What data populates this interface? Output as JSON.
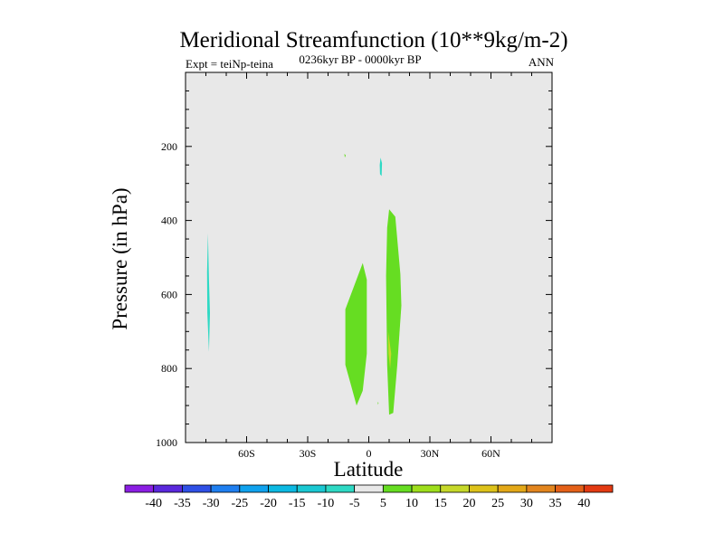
{
  "chart_data": {
    "type": "contour",
    "title": "Meridional Streamfunction (10**9kg/m-2)",
    "subtitle_left": "Expt = teiNp-teina",
    "subtitle_center": "0236kyr BP - 0000kyr BP",
    "subtitle_right": "ANN",
    "xlabel": "Latitude",
    "ylabel": "Pressure (in hPa)",
    "xlim": [
      -90,
      90
    ],
    "ylim": [
      1000,
      0
    ],
    "x_ticks": [
      {
        "value": -60,
        "label": "60S"
      },
      {
        "value": -30,
        "label": "30S"
      },
      {
        "value": 0,
        "label": "0"
      },
      {
        "value": 30,
        "label": "30N"
      },
      {
        "value": 60,
        "label": "60N"
      }
    ],
    "y_ticks": [
      {
        "value": 200,
        "label": "200"
      },
      {
        "value": 400,
        "label": "400"
      },
      {
        "value": 600,
        "label": "600"
      },
      {
        "value": 800,
        "label": "800"
      },
      {
        "value": 1000,
        "label": "1000"
      }
    ],
    "background_color": "#e8e8e8",
    "regions": [
      {
        "name": "neg-sh-high-lat",
        "level": "-10 to -5",
        "color": "#2ed9c4",
        "points": [
          [
            -79,
            435
          ],
          [
            -78.5,
            560
          ],
          [
            -78,
            650
          ],
          [
            -78.5,
            755
          ],
          [
            -79.3,
            650
          ],
          [
            -79.4,
            540
          ]
        ]
      },
      {
        "name": "neg-upper-small",
        "level": "-10 to -5",
        "color": "#2ed9c4",
        "points": [
          [
            5.8,
            230
          ],
          [
            6.5,
            245
          ],
          [
            6.3,
            280
          ],
          [
            5.5,
            275
          ],
          [
            5.4,
            250
          ]
        ]
      },
      {
        "name": "dot-upper",
        "level": "5 to 10",
        "color": "#66dd22",
        "points": [
          [
            -12,
            220
          ],
          [
            -11.3,
            224
          ],
          [
            -11.8,
            230
          ]
        ]
      },
      {
        "name": "pos-eq-lobe",
        "level": "5 to 10",
        "color": "#66dd22",
        "points": [
          [
            -3,
            515
          ],
          [
            -1,
            560
          ],
          [
            -1,
            760
          ],
          [
            -3,
            860
          ],
          [
            -6,
            900
          ],
          [
            -9,
            840
          ],
          [
            -11.5,
            790
          ],
          [
            -11.5,
            640
          ]
        ]
      },
      {
        "name": "pos-nh-lobe",
        "level": "5 to 10",
        "color": "#66dd22",
        "points": [
          [
            10,
            370
          ],
          [
            13,
            390
          ],
          [
            15.5,
            545
          ],
          [
            16,
            630
          ],
          [
            14,
            790
          ],
          [
            12,
            920
          ],
          [
            10,
            925
          ],
          [
            9,
            790
          ],
          [
            8.5,
            550
          ],
          [
            9,
            420
          ]
        ]
      },
      {
        "name": "pos-nh-core",
        "level": "10 to 15",
        "color": "#c6d82a",
        "points": [
          [
            9.5,
            700
          ],
          [
            11,
            760
          ],
          [
            10.5,
            800
          ],
          [
            9.7,
            760
          ]
        ]
      },
      {
        "name": "dot-lower",
        "level": "5 to 10",
        "color": "#66dd22",
        "points": [
          [
            4.4,
            890
          ],
          [
            4.8,
            893
          ],
          [
            4.5,
            898
          ]
        ]
      }
    ],
    "colorbar": {
      "labels": [
        "-40",
        "-35",
        "-30",
        "-25",
        "-20",
        "-15",
        "-10",
        "-5",
        "5",
        "10",
        "15",
        "20",
        "25",
        "30",
        "35",
        "40"
      ],
      "colors": [
        "#8b1ee3",
        "#5a28dc",
        "#2f50e6",
        "#1f7ff0",
        "#10a2ee",
        "#0cb9e2",
        "#1ac8d2",
        "#2ed9c4",
        "#e8e8e8",
        "#66dd22",
        "#9ede1c",
        "#c6d82a",
        "#ddc21a",
        "#e3a818",
        "#e2851e",
        "#e46018",
        "#e33a12"
      ]
    }
  }
}
